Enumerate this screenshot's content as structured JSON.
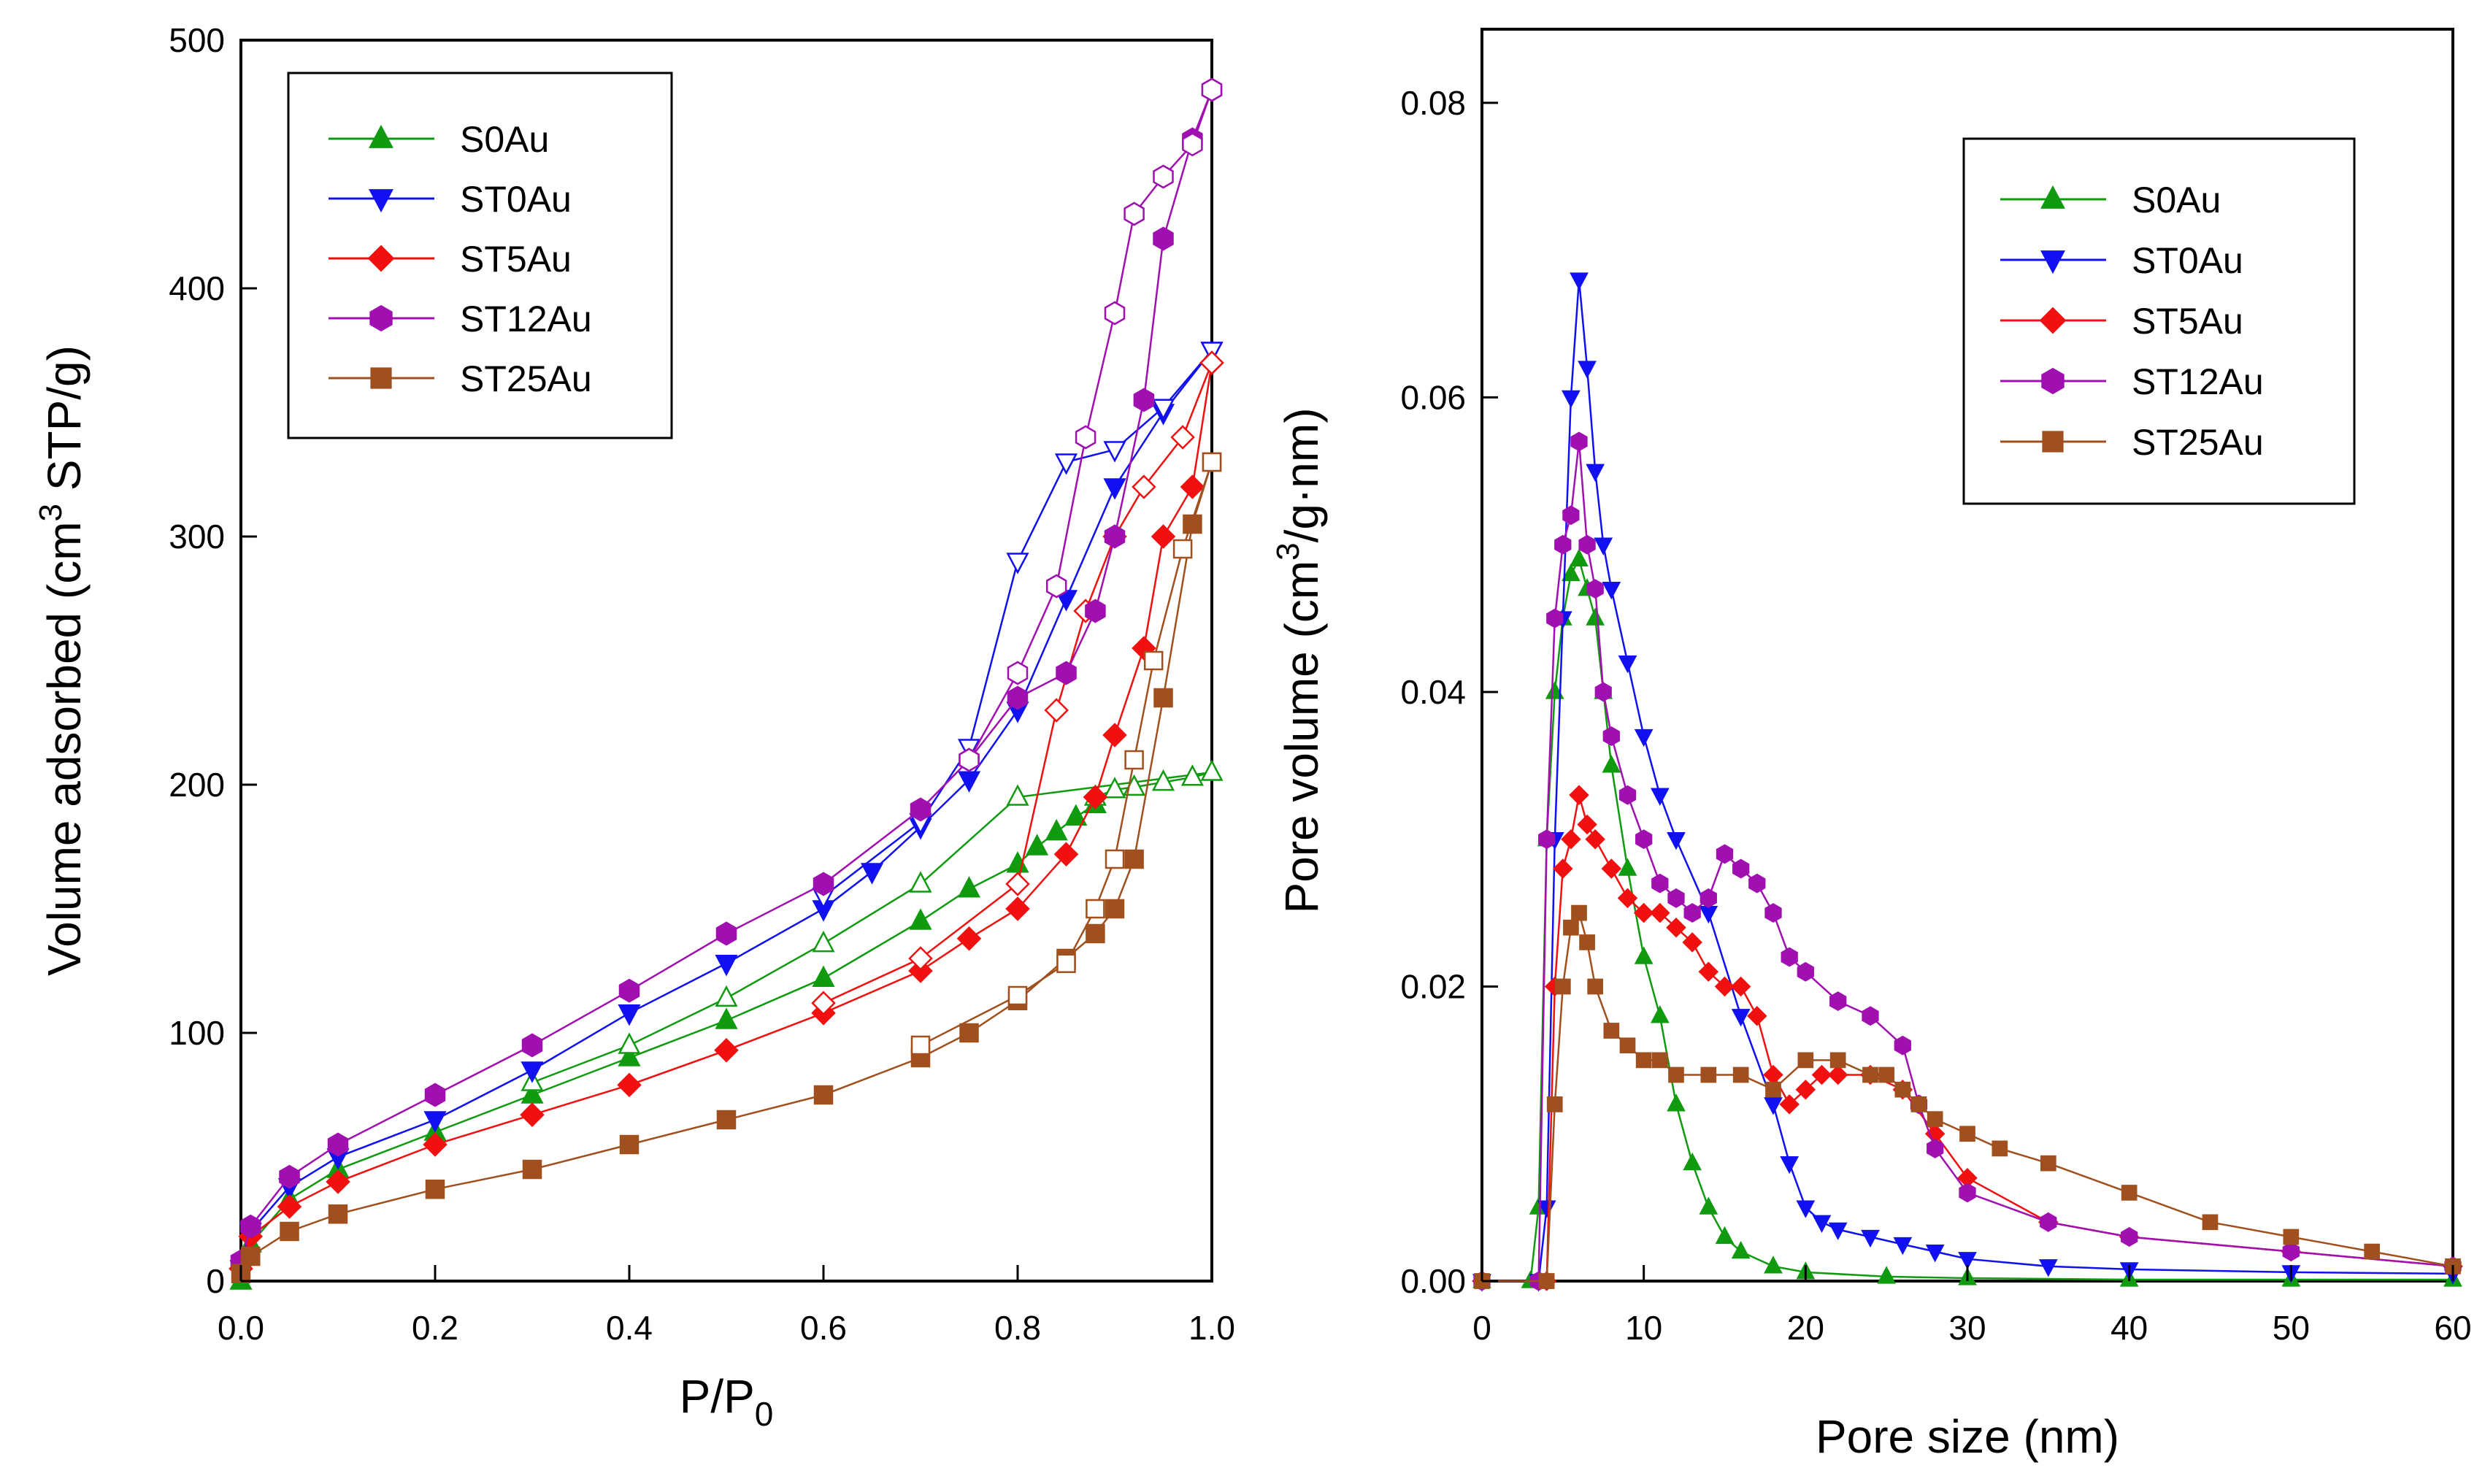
{
  "chart_data": [
    {
      "type": "scatter",
      "title": "",
      "xlabel": "P/P0",
      "xlabel_main": "P/P",
      "xlabel_sub": "0",
      "ylabel": "Volume adsorbed (cm3 STP/g)",
      "ylabel_pre": "Volume adsorbed (cm",
      "ylabel_sup": "3",
      "ylabel_post": " STP/g)",
      "xlim": [
        0,
        1.0
      ],
      "ylim": [
        0,
        500
      ],
      "xticks": [
        "0.0",
        "0.2",
        "0.4",
        "0.6",
        "0.8",
        "1.0"
      ],
      "yticks": [
        "0",
        "100",
        "200",
        "300",
        "400",
        "500"
      ],
      "legend_position": "top-left",
      "series": [
        {
          "name": "S0Au",
          "color": "#109A10",
          "marker": "triangle-up",
          "adsorption": {
            "x": [
              0.0,
              0.01,
              0.05,
              0.1,
              0.2,
              0.3,
              0.4,
              0.5,
              0.6,
              0.7,
              0.75,
              0.8,
              0.82,
              0.84,
              0.86,
              0.88
            ],
            "y": [
              0,
              15,
              33,
              45,
              60,
              75,
              90,
              105,
              122,
              145,
              158,
              168,
              175,
              181,
              187,
              192
            ]
          },
          "desorption": {
            "x": [
              0.88,
              0.9,
              0.92,
              0.95,
              0.98,
              1.0,
              0.8,
              0.7,
              0.6,
              0.5,
              0.4,
              0.3
            ],
            "y": [
              195,
              198,
              199,
              201,
              203,
              205,
              195,
              160,
              136,
              114,
              95,
              80
            ]
          }
        },
        {
          "name": "ST0Au",
          "color": "#1010F0",
          "marker": "triangle-down",
          "adsorption": {
            "x": [
              0.0,
              0.01,
              0.05,
              0.1,
              0.2,
              0.3,
              0.4,
              0.5,
              0.6,
              0.65,
              0.7,
              0.75,
              0.8,
              0.85,
              0.9,
              0.95,
              1.0
            ],
            "y": [
              5,
              20,
              38,
              50,
              65,
              85,
              108,
              128,
              150,
              165,
              183,
              202,
              230,
              275,
              320,
              350,
              375
            ]
          },
          "desorption": {
            "x": [
              1.0,
              0.95,
              0.9,
              0.85,
              0.8,
              0.75,
              0.7,
              0.6
            ],
            "y": [
              375,
              352,
              335,
              330,
              290,
              215,
              185,
              155
            ]
          }
        },
        {
          "name": "ST5Au",
          "color": "#F01010",
          "marker": "diamond",
          "adsorption": {
            "x": [
              0.0,
              0.01,
              0.05,
              0.1,
              0.2,
              0.3,
              0.4,
              0.5,
              0.6,
              0.7,
              0.75,
              0.8,
              0.85,
              0.88,
              0.9,
              0.93,
              0.95,
              0.98,
              1.0
            ],
            "y": [
              5,
              18,
              30,
              40,
              55,
              67,
              79,
              93,
              108,
              125,
              138,
              150,
              172,
              195,
              220,
              255,
              300,
              320,
              370
            ]
          },
          "desorption": {
            "x": [
              1.0,
              0.97,
              0.93,
              0.9,
              0.87,
              0.84,
              0.8,
              0.7,
              0.6
            ],
            "y": [
              370,
              340,
              320,
              300,
              270,
              230,
              160,
              130,
              112
            ]
          }
        },
        {
          "name": "ST12Au",
          "color": "#A010B0",
          "marker": "hexagon",
          "adsorption": {
            "x": [
              0.0,
              0.01,
              0.05,
              0.1,
              0.2,
              0.3,
              0.4,
              0.5,
              0.6,
              0.7,
              0.75,
              0.8,
              0.85,
              0.88,
              0.9,
              0.93,
              0.95,
              0.98,
              1.0
            ],
            "y": [
              8,
              22,
              42,
              55,
              75,
              95,
              117,
              140,
              160,
              190,
              210,
              235,
              245,
              270,
              300,
              355,
              420,
              460,
              480
            ]
          },
          "desorption": {
            "x": [
              1.0,
              0.98,
              0.95,
              0.92,
              0.9,
              0.87,
              0.84,
              0.8,
              0.75
            ],
            "y": [
              480,
              458,
              445,
              430,
              390,
              340,
              280,
              245,
              210
            ]
          }
        },
        {
          "name": "ST25Au",
          "color": "#A0501E",
          "marker": "square",
          "adsorption": {
            "x": [
              0.0,
              0.01,
              0.05,
              0.1,
              0.2,
              0.3,
              0.4,
              0.5,
              0.6,
              0.7,
              0.75,
              0.8,
              0.85,
              0.88,
              0.9,
              0.92,
              0.95,
              0.98,
              1.0
            ],
            "y": [
              3,
              10,
              20,
              27,
              37,
              45,
              55,
              65,
              75,
              90,
              100,
              113,
              130,
              140,
              150,
              170,
              235,
              305,
              330
            ]
          },
          "desorption": {
            "x": [
              1.0,
              0.97,
              0.94,
              0.92,
              0.9,
              0.88,
              0.85,
              0.8,
              0.7
            ],
            "y": [
              330,
              295,
              250,
              210,
              170,
              150,
              128,
              115,
              95
            ]
          }
        }
      ]
    },
    {
      "type": "scatter",
      "title": "",
      "xlabel": "Pore size (nm)",
      "ylabel": "Pore volume (cm3/g·nm)",
      "ylabel_pre": "Pore volume (cm",
      "ylabel_sup": "3",
      "ylabel_post": "/g·nm)",
      "xlim": [
        0,
        60
      ],
      "ylim": [
        0,
        0.085
      ],
      "xticks": [
        "0",
        "10",
        "20",
        "30",
        "40",
        "50",
        "60"
      ],
      "yticks": [
        "0.00",
        "0.02",
        "0.04",
        "0.06",
        "0.08"
      ],
      "legend_position": "top-right",
      "series": [
        {
          "name": "S0Au",
          "color": "#109A10",
          "marker": "triangle-up",
          "x": [
            0,
            3,
            3.5,
            4,
            4.5,
            5,
            5.5,
            6,
            6.5,
            7,
            7.5,
            8,
            9,
            10,
            11,
            12,
            13,
            14,
            15,
            16,
            18,
            20,
            25,
            30,
            40,
            50,
            60
          ],
          "y": [
            0,
            0,
            0.005,
            0.03,
            0.04,
            0.045,
            0.048,
            0.049,
            0.047,
            0.045,
            0.04,
            0.035,
            0.028,
            0.022,
            0.018,
            0.012,
            0.008,
            0.005,
            0.003,
            0.002,
            0.001,
            0.0006,
            0.0003,
            0.0002,
            0.0001,
            0.0001,
            0.0001
          ]
        },
        {
          "name": "ST0Au",
          "color": "#1010F0",
          "marker": "triangle-down",
          "x": [
            0,
            3.5,
            4,
            4.5,
            5,
            5.5,
            6,
            6.5,
            7,
            7.5,
            8,
            9,
            10,
            11,
            12,
            14,
            16,
            18,
            19,
            20,
            21,
            22,
            24,
            26,
            28,
            30,
            35,
            40,
            50,
            60
          ],
          "y": [
            0,
            0,
            0.005,
            0.03,
            0.045,
            0.06,
            0.068,
            0.062,
            0.055,
            0.05,
            0.047,
            0.042,
            0.037,
            0.033,
            0.03,
            0.025,
            0.018,
            0.012,
            0.008,
            0.005,
            0.004,
            0.0035,
            0.003,
            0.0025,
            0.002,
            0.0015,
            0.001,
            0.0008,
            0.0006,
            0.0005
          ]
        },
        {
          "name": "ST5Au",
          "color": "#F01010",
          "marker": "diamond",
          "x": [
            0,
            4,
            4.5,
            5,
            5.5,
            6,
            6.5,
            7,
            8,
            9,
            10,
            11,
            12,
            13,
            14,
            15,
            16,
            17,
            18,
            19,
            20,
            21,
            22,
            24,
            26,
            28,
            30,
            35,
            40,
            50,
            60
          ],
          "y": [
            0,
            0,
            0.02,
            0.028,
            0.03,
            0.033,
            0.031,
            0.03,
            0.028,
            0.026,
            0.025,
            0.025,
            0.024,
            0.023,
            0.021,
            0.02,
            0.02,
            0.018,
            0.014,
            0.012,
            0.013,
            0.014,
            0.014,
            0.014,
            0.013,
            0.01,
            0.007,
            0.004,
            0.003,
            0.002,
            0.001
          ]
        },
        {
          "name": "ST12Au",
          "color": "#A010B0",
          "marker": "hexagon",
          "x": [
            0,
            3.5,
            4,
            4.5,
            5,
            5.5,
            6,
            6.5,
            7,
            7.5,
            8,
            9,
            10,
            11,
            12,
            13,
            14,
            15,
            16,
            17,
            18,
            19,
            20,
            22,
            24,
            26,
            27,
            28,
            30,
            35,
            40,
            50,
            60
          ],
          "y": [
            0,
            0,
            0.03,
            0.045,
            0.05,
            0.052,
            0.057,
            0.05,
            0.047,
            0.04,
            0.037,
            0.033,
            0.03,
            0.027,
            0.026,
            0.025,
            0.026,
            0.029,
            0.028,
            0.027,
            0.025,
            0.022,
            0.021,
            0.019,
            0.018,
            0.016,
            0.012,
            0.009,
            0.006,
            0.004,
            0.003,
            0.002,
            0.001
          ]
        },
        {
          "name": "ST25Au",
          "color": "#A0501E",
          "marker": "square",
          "x": [
            0,
            4,
            4.5,
            5,
            5.5,
            6,
            6.5,
            7,
            8,
            9,
            10,
            11,
            12,
            14,
            16,
            18,
            20,
            22,
            24,
            25,
            26,
            27,
            28,
            30,
            32,
            35,
            40,
            45,
            50,
            55,
            60
          ],
          "y": [
            0,
            0,
            0.012,
            0.02,
            0.024,
            0.025,
            0.023,
            0.02,
            0.017,
            0.016,
            0.015,
            0.015,
            0.014,
            0.014,
            0.014,
            0.013,
            0.015,
            0.015,
            0.014,
            0.014,
            0.013,
            0.012,
            0.011,
            0.01,
            0.009,
            0.008,
            0.006,
            0.004,
            0.003,
            0.002,
            0.001
          ]
        }
      ]
    }
  ]
}
